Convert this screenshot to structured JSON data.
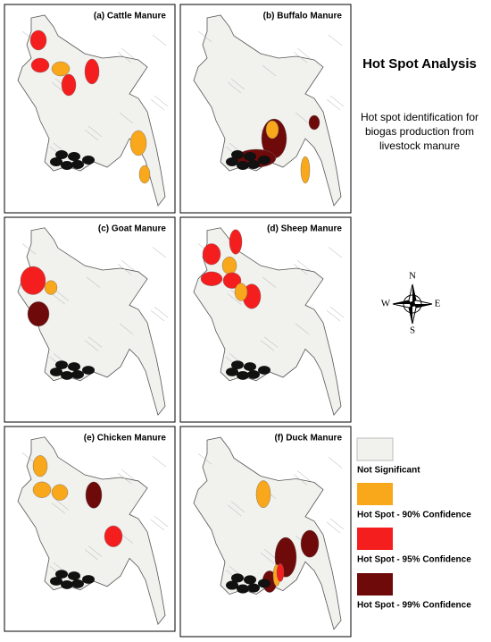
{
  "heading": "Hot Spot Analysis",
  "description": [
    "Hot spot identification for",
    "biogas production from",
    "livestock manure"
  ],
  "panels": [
    {
      "title": "(a) Cattle Manure"
    },
    {
      "title": "(b) Buffalo Manure"
    },
    {
      "title": "(c) Goat Manure"
    },
    {
      "title": "(d) Sheep Manure"
    },
    {
      "title": "(e) Chicken Manure"
    },
    {
      "title": "(f) Duck Manure"
    }
  ],
  "compass": {
    "north": "N",
    "east": "E",
    "south": "S",
    "west": "W"
  },
  "legend": [
    {
      "label": "Not Significant",
      "color": "#f1f1ee"
    },
    {
      "label": "Hot Spot - 90% Confidence",
      "color": "#f9a71b"
    },
    {
      "label": "Hot Spot - 95% Confidence",
      "color": "#f51e1e"
    },
    {
      "label": "Hot Spot - 99% Confidence",
      "color": "#6e0a0a"
    }
  ]
}
